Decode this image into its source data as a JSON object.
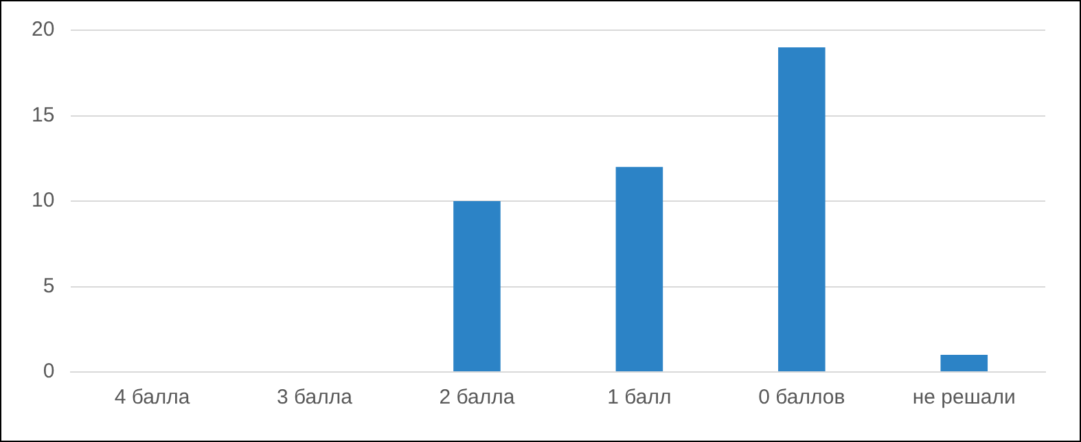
{
  "chart_data": {
    "type": "bar",
    "categories": [
      "4 балла",
      "3 балла",
      "2 балла",
      "1 балл",
      "0 баллов",
      "не решали"
    ],
    "values": [
      0,
      0,
      10,
      12,
      19,
      1
    ],
    "color": "#2c83c6",
    "ylim": [
      0,
      20
    ],
    "yticks": [
      0,
      5,
      10,
      15,
      20
    ],
    "grid": "y",
    "legend": false
  }
}
